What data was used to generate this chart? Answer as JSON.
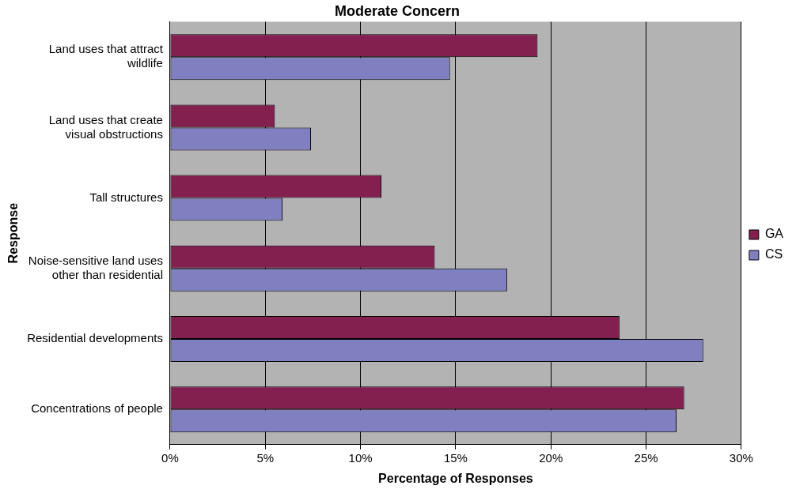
{
  "chart_data": {
    "type": "bar",
    "orientation": "horizontal",
    "title": "Moderate Concern",
    "xlabel": "Percentage of Responses",
    "ylabel": "Response",
    "categories": [
      "Land uses that attract wildlife",
      "Land uses that create visual obstructions",
      "Tall structures",
      "Noise-sensitive land uses other than residential",
      "Residential developments",
      "Concentrations of people"
    ],
    "series": [
      {
        "name": "GA",
        "color": "#832050",
        "values": [
          19.3,
          5.5,
          11.1,
          13.9,
          23.6,
          27.0
        ]
      },
      {
        "name": "CS",
        "color": "#8080c0",
        "values": [
          14.7,
          7.4,
          5.9,
          17.7,
          28.0,
          26.6
        ]
      }
    ],
    "xlim": [
      0,
      30
    ],
    "xticks": [
      {
        "value": 0,
        "label": "0%"
      },
      {
        "value": 5,
        "label": "5%"
      },
      {
        "value": 10,
        "label": "10%"
      },
      {
        "value": 15,
        "label": "15%"
      },
      {
        "value": 20,
        "label": "20%"
      },
      {
        "value": 25,
        "label": "25%"
      },
      {
        "value": 30,
        "label": "30%"
      }
    ],
    "grid": "x",
    "legend": "right"
  }
}
